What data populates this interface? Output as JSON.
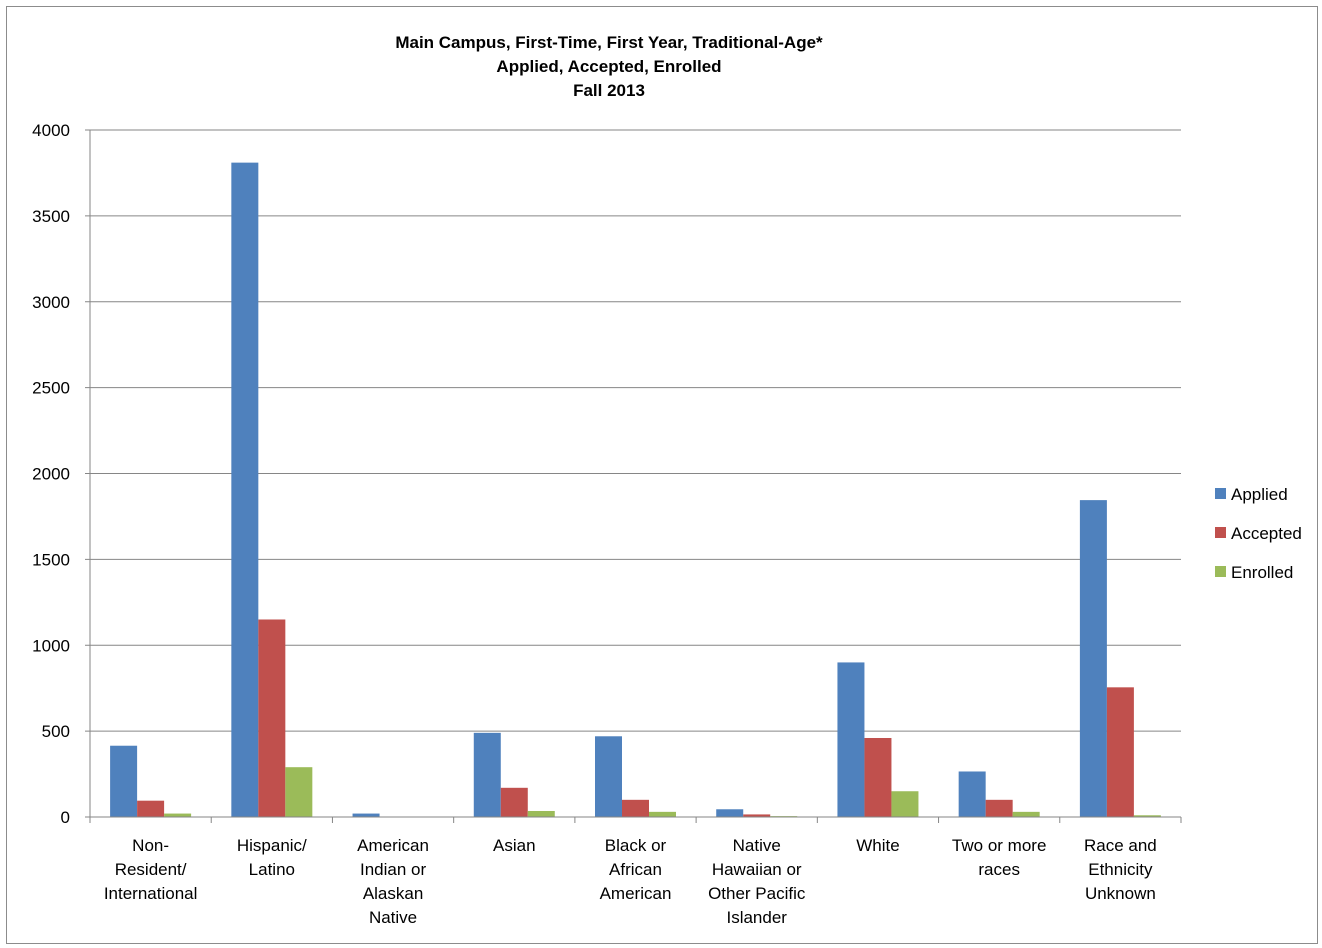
{
  "chart_data": {
    "type": "bar",
    "title": [
      "Main Campus, First-Time, First Year, Traditional-Age*",
      "Applied, Accepted, Enrolled",
      "Fall 2013"
    ],
    "categories": [
      [
        "Non-",
        "Resident/",
        "International"
      ],
      [
        "Hispanic/",
        "Latino"
      ],
      [
        "American",
        "Indian or",
        "Alaskan",
        "Native"
      ],
      [
        "Asian"
      ],
      [
        "Black or",
        "African",
        "American"
      ],
      [
        "Native",
        "Hawaiian or",
        "Other Pacific",
        "Islander"
      ],
      [
        "White"
      ],
      [
        "Two or more",
        "races"
      ],
      [
        "Race and",
        "Ethnicity",
        "Unknown"
      ]
    ],
    "series": [
      {
        "name": "Applied",
        "color": "#4F81BD",
        "values": [
          415,
          3810,
          20,
          490,
          470,
          45,
          900,
          265,
          1845
        ]
      },
      {
        "name": "Accepted",
        "color": "#C0504D",
        "values": [
          95,
          1150,
          0,
          170,
          100,
          15,
          460,
          100,
          755
        ]
      },
      {
        "name": "Enrolled",
        "color": "#9BBB59",
        "values": [
          20,
          290,
          0,
          35,
          30,
          5,
          150,
          30,
          10
        ]
      }
    ],
    "xlabel": "",
    "ylabel": "",
    "ylim": [
      0,
      4000
    ],
    "yticks": [
      "0",
      "500",
      "1000",
      "1500",
      "2000",
      "2500",
      "3000",
      "3500",
      "4000"
    ],
    "grid": true,
    "legend_position": "right"
  }
}
